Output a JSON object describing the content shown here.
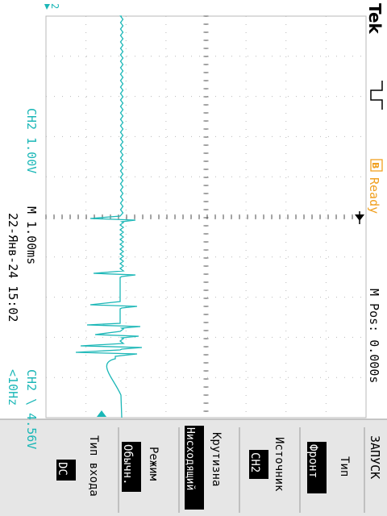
{
  "brand": "Tek",
  "acquisition": {
    "status_letter": "B",
    "status": "Ready"
  },
  "header": {
    "mpos": "M Pos: 0.000s"
  },
  "footer": {
    "ch_scale": "CH2  1.00V",
    "timebase": "M 1.00ms",
    "datetime": "22-Янв-24 15:02",
    "trigger": "CH2 \\ 4.56V",
    "freq": "<10Hz"
  },
  "markers": {
    "trigger_level": "2"
  },
  "menu": {
    "title": "ЗАПУСК",
    "items": [
      {
        "label": "Тип",
        "value": "Фронт"
      },
      {
        "label": "Источник",
        "value": "CH2"
      },
      {
        "label": "Крутизна",
        "value": "Нисходящий"
      },
      {
        "label": "Режим",
        "value": "Обычн."
      },
      {
        "label": "Тип входа",
        "value": "DC"
      }
    ]
  },
  "colors": {
    "trace": "#1bb7b7",
    "label_cyan": "#1bb7b7",
    "ready": "#f0a020",
    "grid": "#b9b9b9",
    "menu_bg": "#e6e6e6",
    "value_bg": "#000000"
  },
  "icons": [
    "trigger-edge-icon",
    "ready-indicator-icon",
    "trigger-position-icon",
    "ground-marker-icon",
    "trigger-level-arrow-icon"
  ]
}
